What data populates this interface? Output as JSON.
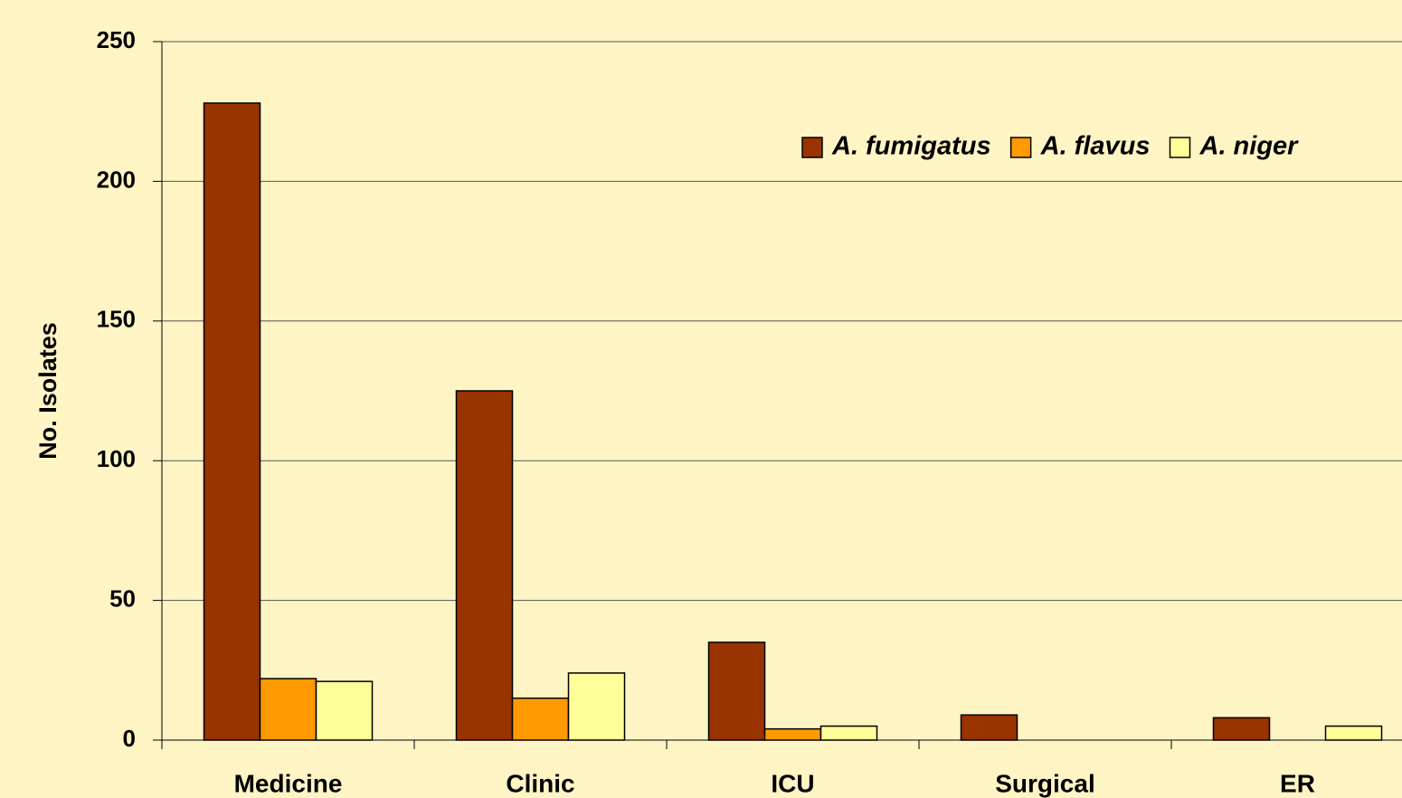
{
  "chart_data": {
    "type": "bar",
    "y_label": "No. Isolates",
    "categories": [
      "Medicine",
      "Clinic",
      "ICU",
      "Surgical",
      "ER"
    ],
    "series": [
      {
        "name": "A. fumigatus",
        "color": "#993300",
        "values": [
          228,
          125,
          35,
          9,
          8
        ]
      },
      {
        "name": "A. flavus",
        "color": "#FF9900",
        "values": [
          22,
          15,
          4,
          0,
          0
        ]
      },
      {
        "name": "A. niger",
        "color": "#FFFF99",
        "values": [
          21,
          24,
          5,
          0,
          5
        ]
      }
    ],
    "ylim": [
      0,
      250
    ],
    "yticks": [
      0,
      50,
      100,
      150,
      200,
      250
    ],
    "grid": true,
    "legend": "top-right"
  }
}
